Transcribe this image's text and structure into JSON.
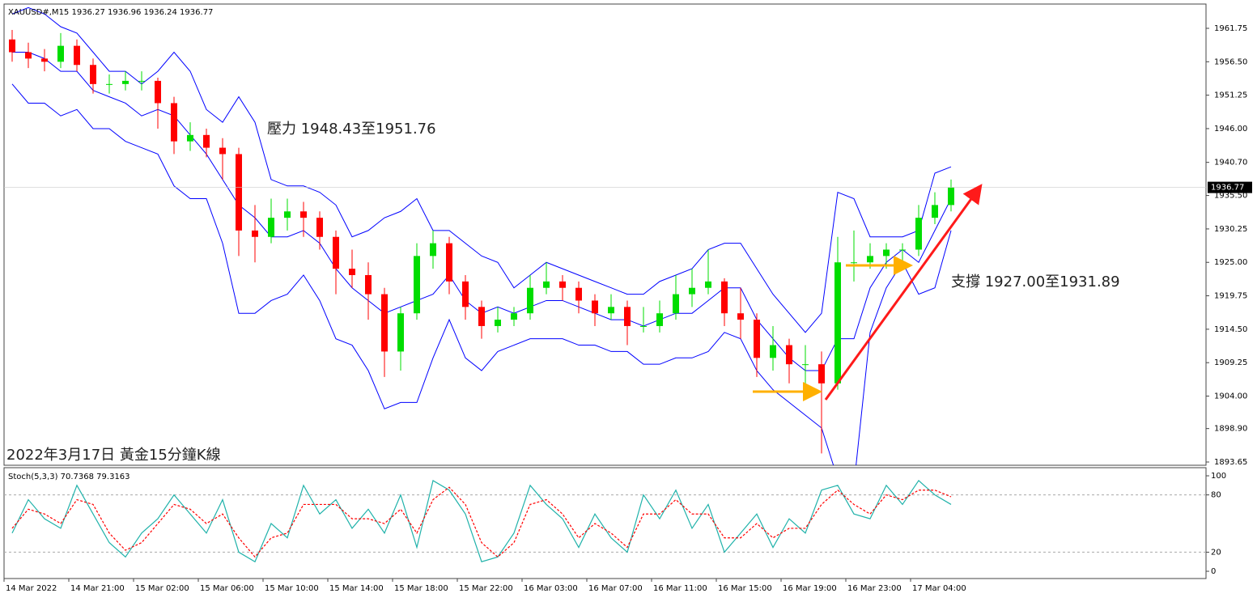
{
  "header": "XAUUSD#,M15  1936.27 1936.96 1936.24 1936.77",
  "x_axis_labels": [
    "14 Mar 2022",
    "14 Mar 21:00",
    "15 Mar 02:00",
    "15 Mar 06:00",
    "15 Mar 10:00",
    "15 Mar 14:00",
    "15 Mar 18:00",
    "15 Mar 22:00",
    "16 Mar 03:00",
    "16 Mar 07:00",
    "16 Mar 11:00",
    "16 Mar 15:00",
    "16 Mar 19:00",
    "16 Mar 23:00",
    "17 Mar 04:00"
  ],
  "chart_data": [
    {
      "type": "candlestick",
      "annotations": [
        "壓力 1948.43至1951.76",
        "支撐 1927.00至1931.89",
        "2022年3月17日 黃金15分鐘K線"
      ],
      "up_color": "#00dd00",
      "down_color": "#ff0000",
      "band_color": "#0000ff",
      "current_price": 1936.77,
      "ylim": [
        1893.14,
        1965.56
      ],
      "yticks": [
        1961.75,
        {
          "value": 1956.5,
          "label": "1956.50"
        },
        1951.25,
        {
          "value": 1946,
          "label": "1946.00"
        },
        {
          "value": 1940.7,
          "label": "1940.70"
        },
        {
          "value": 1935.5,
          "label": "1935.50"
        },
        1930.25,
        {
          "value": 1925,
          "label": "1925.00"
        },
        1919.75,
        {
          "value": 1914.5,
          "label": "1914.50"
        },
        1909.25,
        {
          "value": 1904,
          "label": "1904.00"
        },
        {
          "value": 1898.9,
          "label": "1898.90"
        },
        1893.65
      ],
      "candles": [
        [
          1960,
          1961.5,
          1956.5,
          1958
        ],
        [
          1958,
          1959.5,
          1955.5,
          1957
        ],
        [
          1957,
          1958.5,
          1955,
          1956.5
        ],
        [
          1956.5,
          1961,
          1955.5,
          1959
        ],
        [
          1959,
          1960,
          1955,
          1956
        ],
        [
          1956,
          1957,
          1951.5,
          1953
        ],
        [
          1953,
          1954.5,
          1951.5,
          1953
        ],
        [
          1953,
          1955,
          1952,
          1953.5
        ],
        [
          1953.5,
          1955,
          1952,
          1953.5
        ],
        [
          1953.5,
          1954,
          1946,
          1950
        ],
        [
          1950,
          1951,
          1942,
          1944
        ],
        [
          1944,
          1947,
          1942.5,
          1945
        ],
        [
          1945,
          1946,
          1941.5,
          1943
        ],
        [
          1943,
          1944.5,
          1938,
          1942
        ],
        [
          1942,
          1943,
          1926,
          1930
        ],
        [
          1930,
          1934,
          1925,
          1929
        ],
        [
          1929,
          1935,
          1928,
          1932
        ],
        [
          1932,
          1935,
          1930,
          1933
        ],
        [
          1933,
          1934.5,
          1929,
          1932
        ],
        [
          1932,
          1933,
          1927,
          1929
        ],
        [
          1929,
          1930,
          1920,
          1924
        ],
        [
          1924,
          1927,
          1921,
          1923
        ],
        [
          1923,
          1925,
          1916,
          1920
        ],
        [
          1920,
          1921,
          1907,
          1911
        ],
        [
          1911,
          1918,
          1908,
          1917
        ],
        [
          1917,
          1928,
          1916,
          1926
        ],
        [
          1926,
          1930,
          1924,
          1928
        ],
        [
          1928,
          1929,
          1920,
          1922
        ],
        [
          1922,
          1923,
          1916,
          1918
        ],
        [
          1918,
          1919,
          1913,
          1915
        ],
        [
          1915,
          1918,
          1914,
          1916
        ],
        [
          1916,
          1918,
          1915,
          1917
        ],
        [
          1917,
          1923,
          1916,
          1921
        ],
        [
          1921,
          1925,
          1920,
          1922
        ],
        [
          1922,
          1923,
          1919,
          1921
        ],
        [
          1921,
          1922,
          1917,
          1919
        ],
        [
          1919,
          1920,
          1915,
          1917
        ],
        [
          1917,
          1920,
          1916,
          1918
        ],
        [
          1918,
          1919,
          1912,
          1915
        ],
        [
          1915,
          1918,
          1914,
          1915
        ],
        [
          1915,
          1919,
          1914,
          1917
        ],
        [
          1917,
          1923,
          1916,
          1920
        ],
        [
          1920,
          1924,
          1918,
          1921
        ],
        [
          1921,
          1927,
          1920,
          1922
        ],
        [
          1922,
          1922.5,
          1915,
          1917
        ],
        [
          1917,
          1921,
          1913,
          1916
        ],
        [
          1916,
          1917,
          1907,
          1910
        ],
        [
          1910,
          1915,
          1908,
          1912
        ],
        [
          1912,
          1913,
          1906,
          1909
        ],
        [
          1909,
          1912,
          1904,
          1909
        ],
        [
          1909,
          1911,
          1895,
          1906
        ],
        [
          1906,
          1929,
          1905,
          1925
        ],
        [
          1925,
          1930,
          1922,
          1925
        ],
        [
          1925,
          1928,
          1924,
          1926
        ],
        [
          1926,
          1928,
          1924,
          1927
        ],
        [
          1927,
          1928,
          1925,
          1927
        ],
        [
          1927,
          1934,
          1926,
          1932
        ],
        [
          1932,
          1936,
          1931,
          1934
        ],
        [
          1934,
          1938,
          1933,
          1936.77
        ]
      ],
      "bands": [
        [
          1964,
          1965,
          1964,
          1962,
          1961,
          1958,
          1955,
          1955,
          1953,
          1955,
          1958,
          1955,
          1949,
          1947,
          1951,
          1947,
          1938,
          1937,
          1937,
          1936,
          1934,
          1929,
          1930,
          1932,
          1933,
          1935,
          1930,
          1930,
          1928,
          1926,
          1925,
          1921,
          1923,
          1925,
          1924,
          1923,
          1922,
          1921,
          1920,
          1920,
          1922,
          1923,
          1924,
          1927,
          1928,
          1928,
          1924,
          1920,
          1917,
          1914,
          1917,
          1936,
          1935,
          1929,
          1929,
          1929,
          1930,
          1939,
          1940
        ],
        [
          1958,
          1958,
          1957,
          1955,
          1955,
          1952,
          1951,
          1950,
          1948,
          1949,
          1948,
          1945,
          1942,
          1938,
          1934,
          1932,
          1929,
          1929,
          1930,
          1928,
          1924,
          1921,
          1919,
          1917,
          1918,
          1919,
          1920,
          1923,
          1919,
          1917,
          1918,
          1917,
          1918,
          1919,
          1919,
          1918,
          1917,
          1916,
          1916,
          1915,
          1916,
          1917,
          1917,
          1919,
          1921,
          1921,
          1916,
          1913,
          1910,
          1908,
          1908,
          1913,
          1913,
          1921,
          1925,
          1927,
          1925,
          1930,
          1935
        ],
        [
          1953,
          1950,
          1950,
          1948,
          1949,
          1946,
          1946,
          1944,
          1943,
          1942,
          1937,
          1935,
          1935,
          1928,
          1917,
          1917,
          1919,
          1920,
          1923,
          1919,
          1913,
          1912,
          1908,
          1902,
          1903,
          1903,
          1910,
          1916,
          1910,
          1908,
          1911,
          1912,
          1913,
          1913,
          1913,
          1912,
          1912,
          1911,
          1911,
          1909,
          1909,
          1910,
          1910,
          1911,
          1914,
          1913,
          1908,
          1905,
          1903,
          1901,
          1899,
          1891,
          1890,
          1914,
          1921,
          1925,
          1920,
          1921,
          1930
        ]
      ]
    },
    {
      "type": "line",
      "title": "Stoch(5,3,3) 70.7368 79.3163",
      "ylim": [
        -7.6,
        108.5
      ],
      "yticks": [
        100,
        80,
        20,
        0
      ],
      "grid_ticks": [
        80,
        20
      ],
      "series": [
        {
          "color": "#20b2aa",
          "dashed": false,
          "values": [
            40,
            75,
            55,
            45,
            90,
            60,
            30,
            15,
            40,
            55,
            80,
            60,
            40,
            75,
            20,
            10,
            50,
            35,
            90,
            60,
            75,
            45,
            65,
            40,
            80,
            25,
            95,
            85,
            60,
            10,
            15,
            40,
            90,
            70,
            55,
            25,
            60,
            35,
            20,
            80,
            55,
            85,
            45,
            70,
            20,
            40,
            60,
            25,
            55,
            40,
            85,
            90,
            60,
            55,
            90,
            70,
            95,
            80,
            70
          ]
        },
        {
          "color": "#ff0000",
          "dashed": true,
          "values": [
            45,
            65,
            60,
            50,
            75,
            70,
            40,
            22,
            30,
            50,
            70,
            65,
            50,
            60,
            35,
            15,
            35,
            40,
            70,
            70,
            70,
            55,
            55,
            50,
            65,
            40,
            75,
            88,
            70,
            30,
            15,
            30,
            70,
            75,
            60,
            35,
            50,
            40,
            25,
            60,
            60,
            75,
            60,
            60,
            35,
            35,
            50,
            35,
            45,
            45,
            70,
            85,
            70,
            60,
            80,
            75,
            85,
            85,
            78
          ]
        }
      ]
    }
  ]
}
